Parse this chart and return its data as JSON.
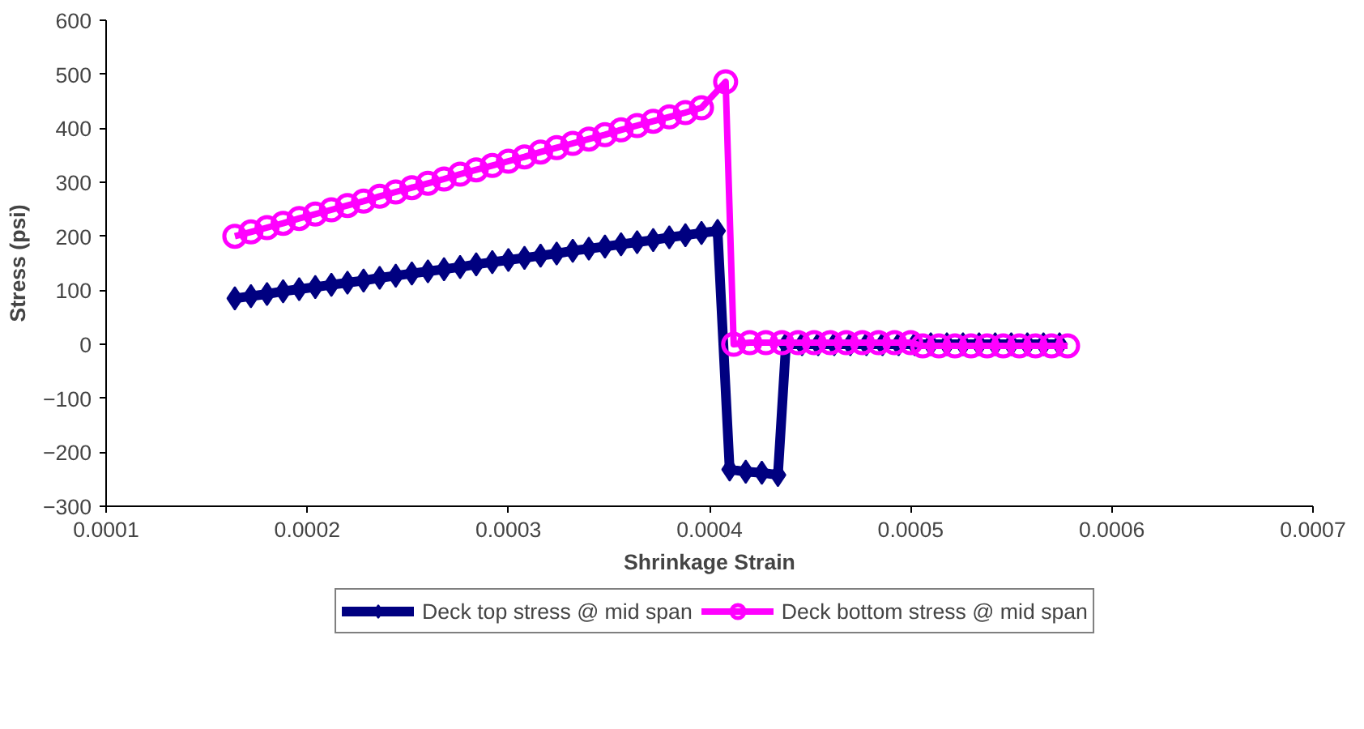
{
  "chart_data": {
    "type": "line",
    "xlabel": "Shrinkage Strain",
    "ylabel": "Stress (psi)",
    "xlim": [
      0.0001,
      0.0007
    ],
    "xticks": [
      0.0001,
      0.0002,
      0.0003,
      0.0004,
      0.0005,
      0.0006,
      0.0007
    ],
    "ylim": [
      -300,
      600
    ],
    "yticks": [
      -300,
      -200,
      -100,
      0,
      100,
      200,
      300,
      400,
      500,
      600
    ],
    "grid": false,
    "legend": "bottom",
    "line_style": "solid",
    "series": [
      {
        "name": "Deck top stress @ mid span",
        "color": "#000080",
        "marker": "diamond",
        "x": [
          0.000164,
          0.000172,
          0.00018,
          0.000188,
          0.000196,
          0.000204,
          0.000212,
          0.00022,
          0.000228,
          0.000236,
          0.000244,
          0.000252,
          0.00026,
          0.000268,
          0.000276,
          0.000284,
          0.000292,
          0.0003,
          0.000308,
          0.000316,
          0.000324,
          0.000332,
          0.00034,
          0.000348,
          0.000356,
          0.000364,
          0.000372,
          0.00038,
          0.000388,
          0.000396,
          0.000404,
          0.00041,
          0.000418,
          0.000426,
          0.000434,
          0.000438,
          0.000446,
          0.000454,
          0.000462,
          0.00047,
          0.000478,
          0.000486,
          0.000494,
          0.000502,
          0.00051,
          0.000518,
          0.000526,
          0.000534,
          0.000542,
          0.00055,
          0.000558,
          0.000566,
          0.000574
        ],
        "values": [
          85,
          89,
          93,
          98,
          102,
          106,
          110,
          114,
          118,
          123,
          127,
          131,
          135,
          139,
          143,
          148,
          152,
          156,
          160,
          164,
          168,
          173,
          177,
          181,
          185,
          189,
          193,
          198,
          202,
          206,
          210,
          -232,
          -236,
          -238,
          -242,
          0,
          0,
          0,
          0,
          0,
          0,
          0,
          0,
          0,
          0,
          0,
          0,
          0,
          0,
          0,
          0,
          0,
          0
        ]
      },
      {
        "name": "Deck bottom stress @ mid span",
        "color": "#ff00ff",
        "marker": "circle",
        "x": [
          0.000164,
          0.000172,
          0.00018,
          0.000188,
          0.000196,
          0.000204,
          0.000212,
          0.00022,
          0.000228,
          0.000236,
          0.000244,
          0.000252,
          0.00026,
          0.000268,
          0.000276,
          0.000284,
          0.000292,
          0.0003,
          0.000308,
          0.000316,
          0.000324,
          0.000332,
          0.00034,
          0.000348,
          0.000356,
          0.000364,
          0.000372,
          0.00038,
          0.000388,
          0.000396,
          0.000408,
          0.000412,
          0.00042,
          0.000428,
          0.000436,
          0.000444,
          0.000452,
          0.00046,
          0.000468,
          0.000476,
          0.000484,
          0.000492,
          0.0005,
          0.000506,
          0.000514,
          0.000522,
          0.00053,
          0.000538,
          0.000546,
          0.000554,
          0.000562,
          0.00057,
          0.000578
        ],
        "values": [
          200,
          208,
          216,
          224,
          233,
          241,
          249,
          257,
          265,
          274,
          282,
          290,
          298,
          306,
          315,
          323,
          331,
          339,
          347,
          356,
          364,
          372,
          380,
          388,
          397,
          405,
          413,
          421,
          429,
          438,
          486,
          0,
          3,
          3,
          3,
          3,
          3,
          3,
          3,
          3,
          3,
          3,
          3,
          -3,
          -3,
          -3,
          -3,
          -3,
          -3,
          -3,
          -3,
          -3,
          -3
        ]
      }
    ]
  }
}
